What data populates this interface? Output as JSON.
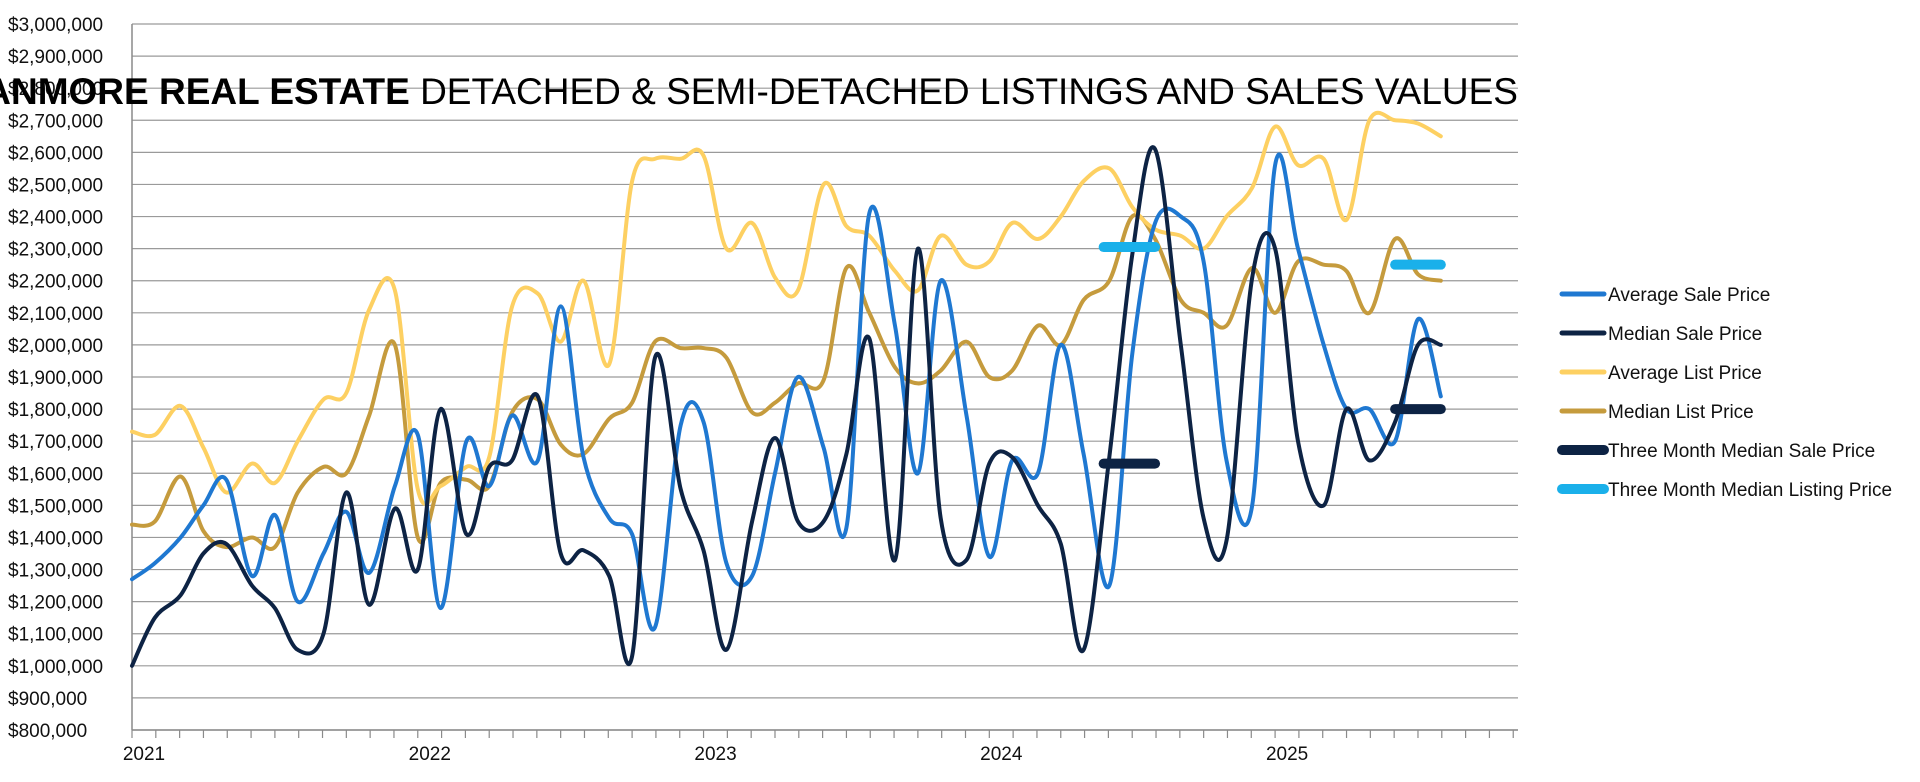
{
  "chart_data": {
    "type": "line",
    "title_bold": "CANMORE REAL ESTATE",
    "title_rest": " DETACHED & SEMI-DETACHED LISTINGS AND SALES VALUES",
    "ylim": [
      800000,
      3000000
    ],
    "y_step": 100000,
    "xlim": [
      2021.0,
      2025.85
    ],
    "grid": true,
    "legend_position": "right",
    "x_tick_labels": [
      "2021",
      "2022",
      "2023",
      "2024",
      "2025"
    ],
    "series": [
      {
        "name": "Average Sale Price",
        "color": "#1f78d1",
        "width": 4,
        "x": [
          2021.0,
          2021.08,
          2021.17,
          2021.25,
          2021.33,
          2021.42,
          2021.5,
          2021.58,
          2021.67,
          2021.75,
          2021.83,
          2021.92,
          2022.0,
          2022.08,
          2022.17,
          2022.25,
          2022.33,
          2022.42,
          2022.5,
          2022.58,
          2022.67,
          2022.75,
          2022.83,
          2022.92,
          2023.0,
          2023.08,
          2023.17,
          2023.25,
          2023.33,
          2023.42,
          2023.5,
          2023.58,
          2023.67,
          2023.75,
          2023.83,
          2023.92,
          2024.0,
          2024.08,
          2024.17,
          2024.25,
          2024.33,
          2024.42,
          2024.5,
          2024.58,
          2024.67,
          2024.75,
          2024.83,
          2024.92,
          2025.0,
          2025.08,
          2025.17,
          2025.25,
          2025.33,
          2025.42,
          2025.5,
          2025.58
        ],
        "values": [
          1270000,
          1320000,
          1400000,
          1500000,
          1580000,
          1280000,
          1470000,
          1200000,
          1350000,
          1480000,
          1290000,
          1560000,
          1720000,
          1180000,
          1700000,
          1560000,
          1780000,
          1640000,
          2120000,
          1650000,
          1460000,
          1410000,
          1120000,
          1750000,
          1760000,
          1320000,
          1280000,
          1600000,
          1900000,
          1680000,
          1430000,
          2410000,
          2060000,
          1600000,
          2200000,
          1780000,
          1340000,
          1640000,
          1600000,
          2000000,
          1660000,
          1250000,
          1970000,
          2380000,
          2400000,
          2260000,
          1640000,
          1500000,
          2560000,
          2300000,
          2000000,
          1800000,
          1800000,
          1700000,
          2080000,
          1840000
        ]
      },
      {
        "name": "Median Sale Price",
        "color": "#0d2344",
        "width": 4,
        "x": [
          2021.0,
          2021.08,
          2021.17,
          2021.25,
          2021.33,
          2021.42,
          2021.5,
          2021.58,
          2021.67,
          2021.75,
          2021.83,
          2021.92,
          2022.0,
          2022.08,
          2022.17,
          2022.25,
          2022.33,
          2022.42,
          2022.5,
          2022.58,
          2022.67,
          2022.75,
          2022.83,
          2022.92,
          2023.0,
          2023.08,
          2023.17,
          2023.25,
          2023.33,
          2023.42,
          2023.5,
          2023.58,
          2023.67,
          2023.75,
          2023.83,
          2023.92,
          2024.0,
          2024.08,
          2024.17,
          2024.25,
          2024.33,
          2024.42,
          2024.5,
          2024.58,
          2024.67,
          2024.75,
          2024.83,
          2024.92,
          2025.0,
          2025.08,
          2025.17,
          2025.25,
          2025.33,
          2025.42,
          2025.5,
          2025.58
        ],
        "values": [
          1000000,
          1150000,
          1220000,
          1350000,
          1380000,
          1250000,
          1180000,
          1050000,
          1100000,
          1540000,
          1190000,
          1490000,
          1300000,
          1800000,
          1410000,
          1620000,
          1640000,
          1840000,
          1350000,
          1360000,
          1280000,
          1030000,
          1960000,
          1550000,
          1360000,
          1050000,
          1450000,
          1710000,
          1450000,
          1450000,
          1660000,
          2020000,
          1330000,
          2300000,
          1460000,
          1330000,
          1630000,
          1650000,
          1500000,
          1380000,
          1050000,
          1650000,
          2280000,
          2610000,
          2000000,
          1460000,
          1390000,
          2210000,
          2300000,
          1700000,
          1500000,
          1800000,
          1640000,
          1760000,
          2000000,
          2000000
        ]
      },
      {
        "name": "Average List Price",
        "color": "#fdd062",
        "width": 4,
        "x": [
          2021.0,
          2021.08,
          2021.17,
          2021.25,
          2021.33,
          2021.42,
          2021.5,
          2021.58,
          2021.67,
          2021.75,
          2021.83,
          2021.92,
          2022.0,
          2022.08,
          2022.17,
          2022.25,
          2022.33,
          2022.42,
          2022.5,
          2022.58,
          2022.67,
          2022.75,
          2022.83,
          2022.92,
          2023.0,
          2023.08,
          2023.17,
          2023.25,
          2023.33,
          2023.42,
          2023.5,
          2023.58,
          2023.67,
          2023.75,
          2023.83,
          2023.92,
          2024.0,
          2024.08,
          2024.17,
          2024.25,
          2024.33,
          2024.42,
          2024.5,
          2024.58,
          2024.67,
          2024.75,
          2024.83,
          2024.92,
          2025.0,
          2025.08,
          2025.17,
          2025.25,
          2025.33,
          2025.42,
          2025.5,
          2025.58
        ],
        "values": [
          1730000,
          1720000,
          1810000,
          1680000,
          1540000,
          1630000,
          1570000,
          1700000,
          1830000,
          1850000,
          2110000,
          2170000,
          1550000,
          1560000,
          1620000,
          1650000,
          2120000,
          2160000,
          2010000,
          2200000,
          1940000,
          2510000,
          2580000,
          2580000,
          2590000,
          2300000,
          2380000,
          2210000,
          2170000,
          2500000,
          2370000,
          2340000,
          2230000,
          2170000,
          2340000,
          2250000,
          2260000,
          2380000,
          2330000,
          2400000,
          2510000,
          2550000,
          2430000,
          2360000,
          2340000,
          2300000,
          2400000,
          2490000,
          2680000,
          2560000,
          2580000,
          2390000,
          2700000,
          2700000,
          2690000,
          2650000
        ]
      },
      {
        "name": "Median List Price",
        "color": "#c59b3d",
        "width": 4,
        "x": [
          2021.0,
          2021.08,
          2021.17,
          2021.25,
          2021.33,
          2021.42,
          2021.5,
          2021.58,
          2021.67,
          2021.75,
          2021.83,
          2021.92,
          2022.0,
          2022.08,
          2022.17,
          2022.25,
          2022.33,
          2022.42,
          2022.5,
          2022.58,
          2022.67,
          2022.75,
          2022.83,
          2022.92,
          2023.0,
          2023.08,
          2023.17,
          2023.25,
          2023.33,
          2023.42,
          2023.5,
          2023.58,
          2023.67,
          2023.75,
          2023.83,
          2023.92,
          2024.0,
          2024.08,
          2024.17,
          2024.25,
          2024.33,
          2024.42,
          2024.5,
          2024.58,
          2024.67,
          2024.75,
          2024.83,
          2024.92,
          2025.0,
          2025.08,
          2025.17,
          2025.25,
          2025.33,
          2025.42,
          2025.5,
          2025.58
        ],
        "values": [
          1440000,
          1450000,
          1590000,
          1420000,
          1370000,
          1400000,
          1370000,
          1540000,
          1620000,
          1600000,
          1780000,
          2000000,
          1400000,
          1570000,
          1580000,
          1560000,
          1790000,
          1830000,
          1690000,
          1660000,
          1770000,
          1820000,
          2010000,
          1990000,
          1990000,
          1960000,
          1790000,
          1820000,
          1880000,
          1890000,
          2240000,
          2100000,
          1930000,
          1880000,
          1920000,
          2010000,
          1900000,
          1920000,
          2060000,
          2000000,
          2140000,
          2200000,
          2400000,
          2330000,
          2140000,
          2100000,
          2060000,
          2240000,
          2100000,
          2260000,
          2250000,
          2230000,
          2100000,
          2330000,
          2220000,
          2200000
        ]
      },
      {
        "name": "Three Month Median Sale Price",
        "color": "#0d2344",
        "width": 10,
        "segments": [
          {
            "x": [
              2024.4,
              2024.58
            ],
            "values": [
              1630000,
              1630000
            ]
          },
          {
            "x": [
              2025.42,
              2025.58
            ],
            "values": [
              1800000,
              1800000
            ]
          }
        ]
      },
      {
        "name": "Three Month Median Listing Price",
        "color": "#1ab0ea",
        "width": 10,
        "segments": [
          {
            "x": [
              2024.4,
              2024.58
            ],
            "values": [
              2305000,
              2305000
            ]
          },
          {
            "x": [
              2025.42,
              2025.58
            ],
            "values": [
              2250000,
              2250000
            ]
          }
        ]
      }
    ]
  }
}
